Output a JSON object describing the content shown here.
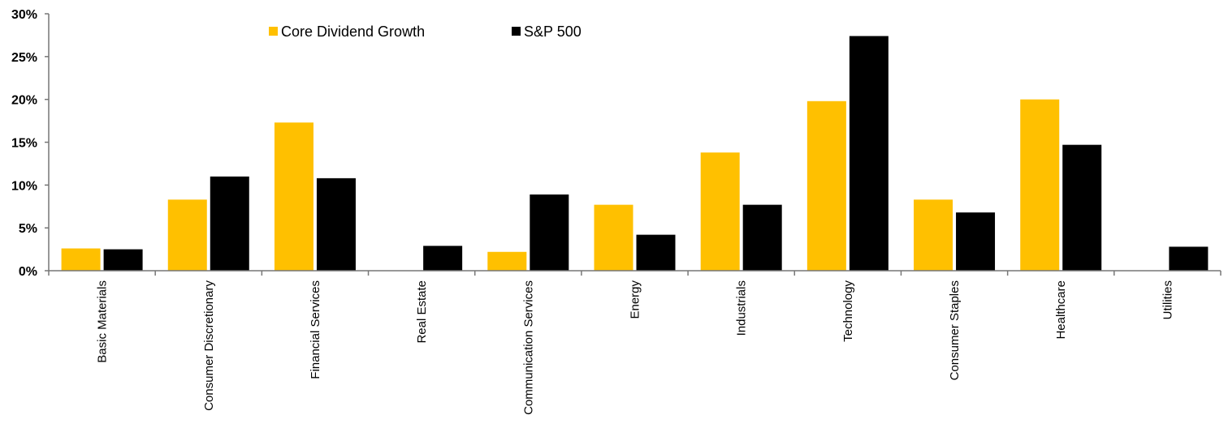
{
  "chart_data": {
    "type": "bar",
    "categories": [
      "Basic Materials",
      "Consumer Discretionary",
      "Financial Services",
      "Real Estate",
      "Communication Services",
      "Energy",
      "Industrials",
      "Technology",
      "Consumer Staples",
      "Healthcare",
      "Utilities"
    ],
    "series": [
      {
        "name": "Core Dividend Growth",
        "color": "#FFC000",
        "values": [
          2.6,
          8.3,
          17.3,
          0,
          2.2,
          7.7,
          13.8,
          19.8,
          8.3,
          20.0,
          0
        ]
      },
      {
        "name": "S&P 500",
        "color": "#000000",
        "values": [
          2.5,
          11.0,
          10.8,
          2.9,
          8.9,
          4.2,
          7.7,
          27.4,
          6.8,
          14.7,
          2.8
        ]
      }
    ],
    "ylim": [
      0,
      30
    ],
    "yticks": [
      0,
      5,
      10,
      15,
      20,
      25,
      30
    ],
    "ytick_labels": [
      "0%",
      "5%",
      "10%",
      "15%",
      "20%",
      "25%",
      "30%"
    ],
    "title": "",
    "xlabel": "",
    "ylabel": "",
    "legend_position": "top-center",
    "grid": false
  }
}
